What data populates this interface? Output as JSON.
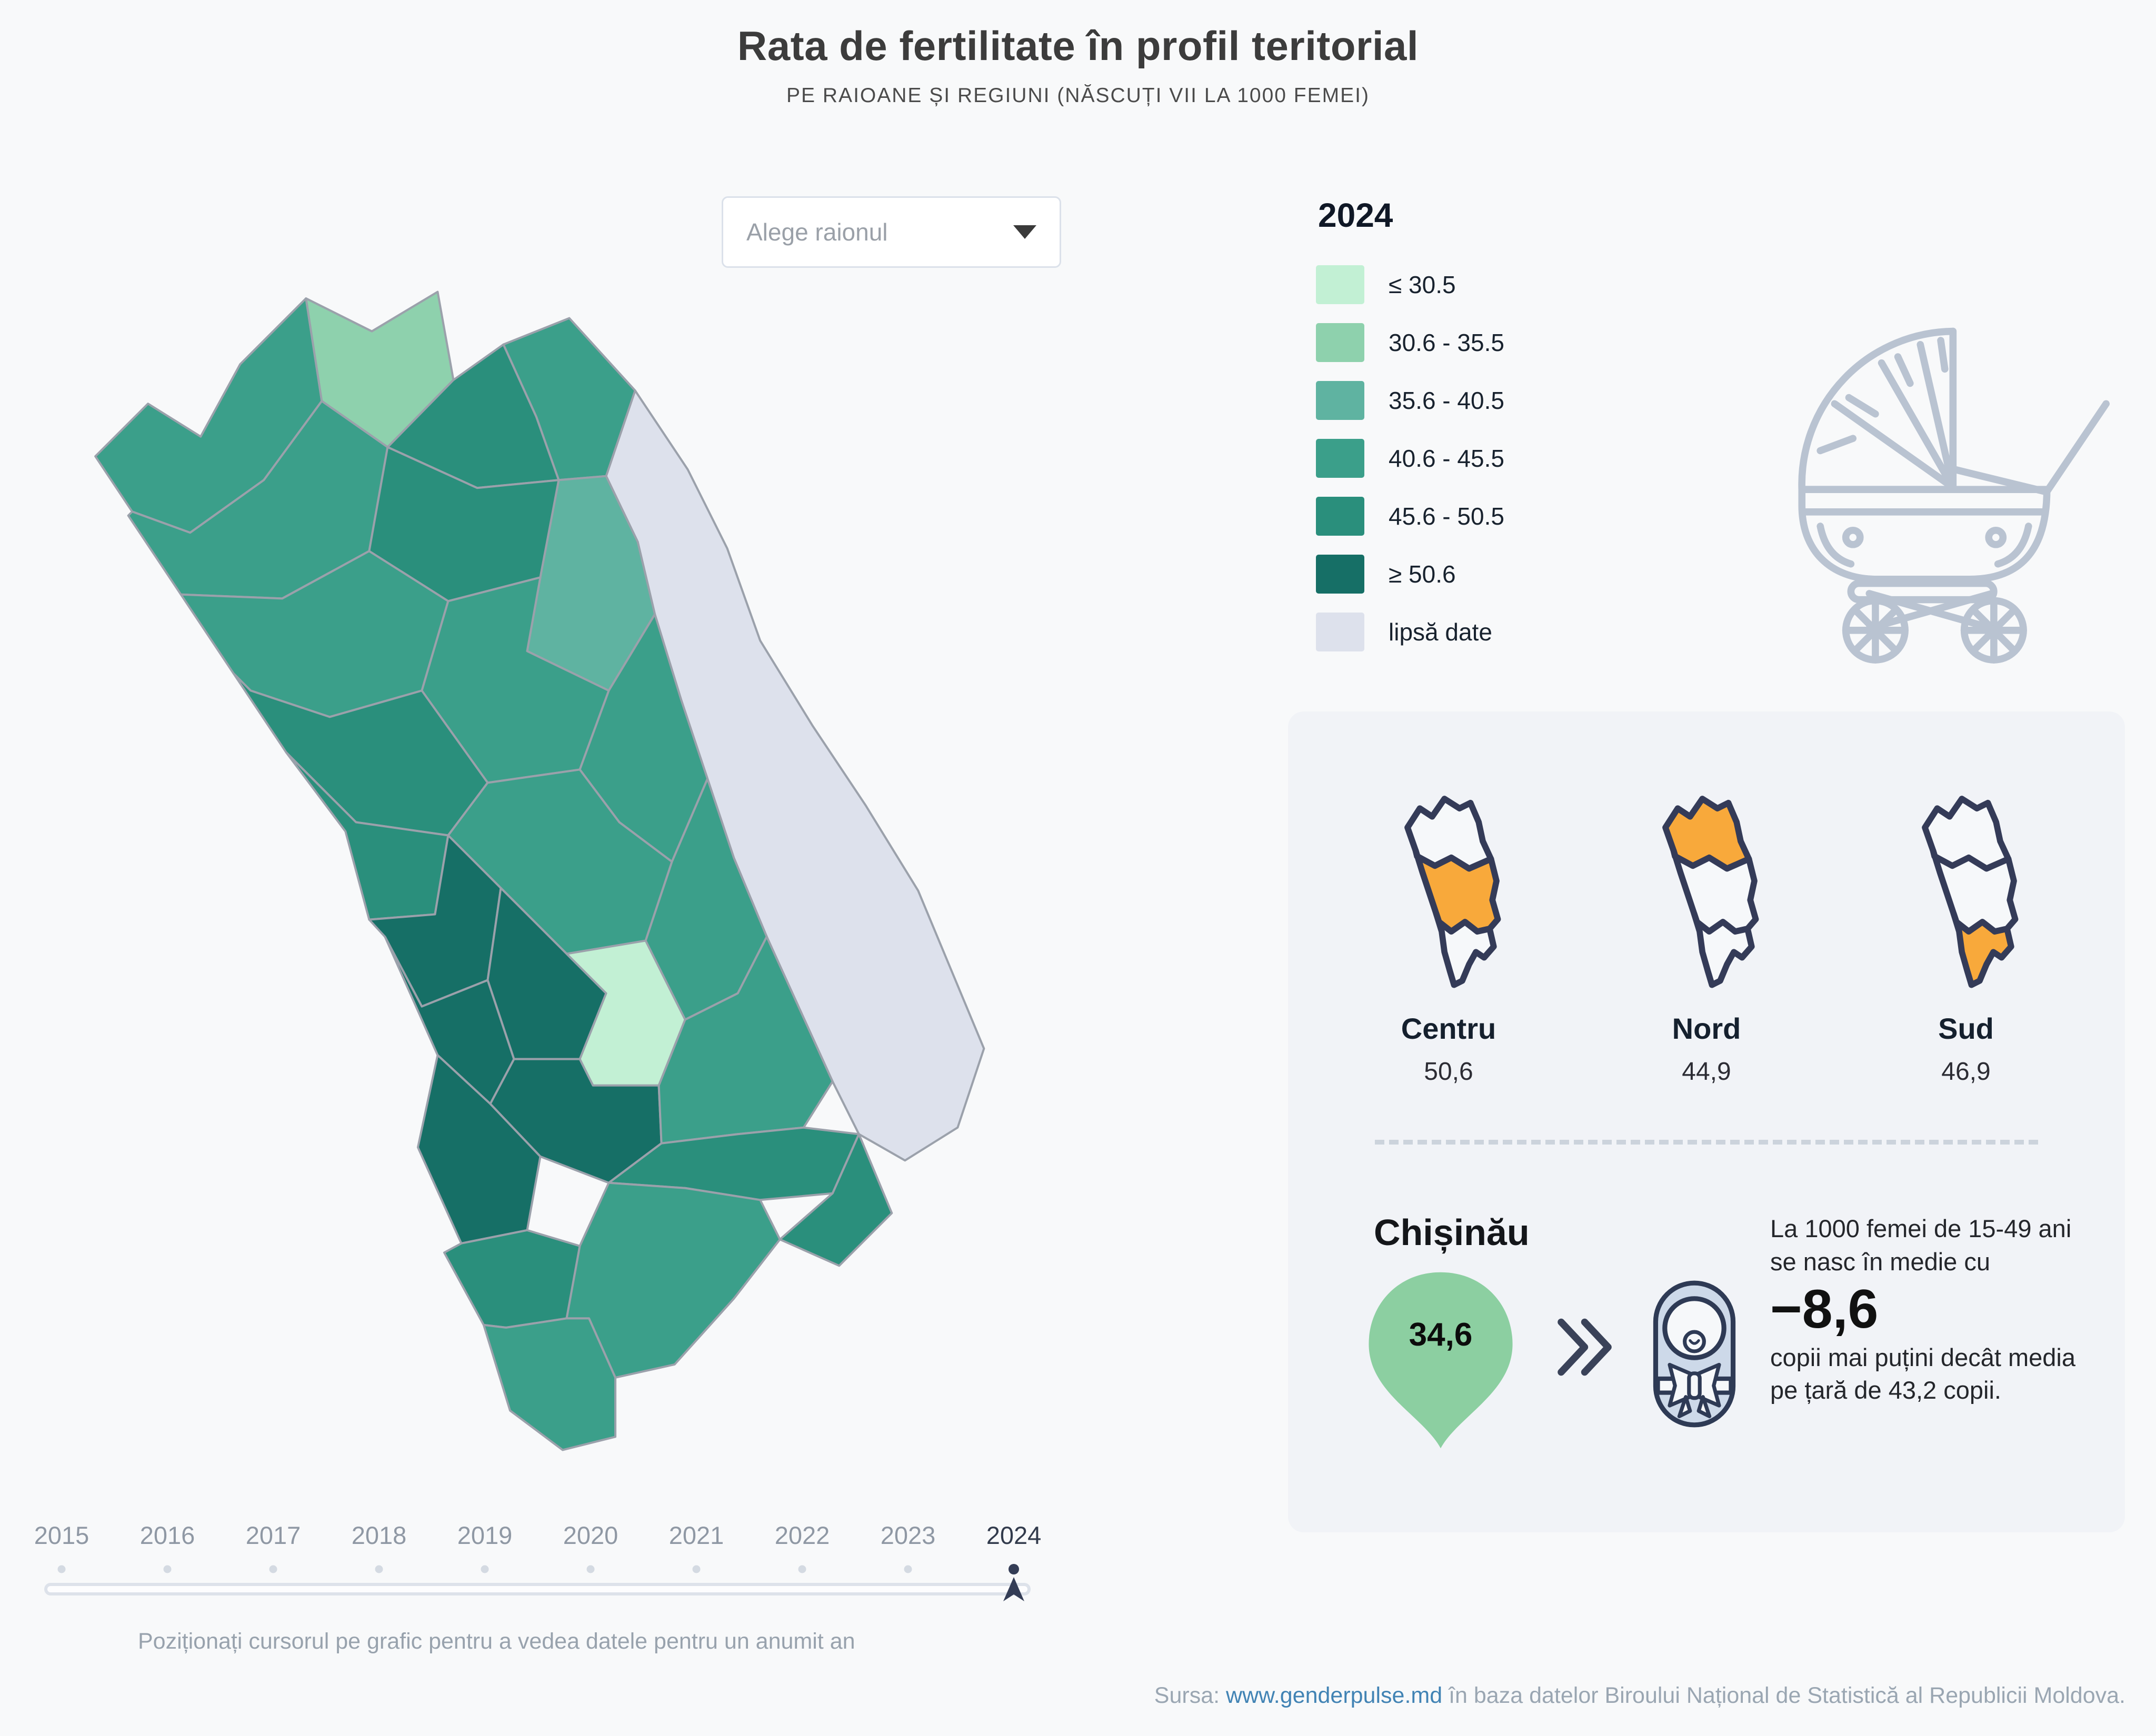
{
  "page": {
    "title": "Rata de fertilitate în profil teritorial",
    "subtitle": "PE RAIOANE ȘI REGIUNI (NĂSCUȚI VII LA 1000 FEMEI)"
  },
  "controls": {
    "district_select_placeholder": "Alege raionul"
  },
  "legend": {
    "year": "2024",
    "classes": [
      {
        "label": "≤ 30.5",
        "color": "#c2f0d4"
      },
      {
        "label": "30.6 - 35.5",
        "color": "#8ed1ad"
      },
      {
        "label": "35.6 - 40.5",
        "color": "#5fb3a1"
      },
      {
        "label": "40.6 - 45.5",
        "color": "#3b9f8a"
      },
      {
        "label": "45.6 - 50.5",
        "color": "#2a8f7c"
      },
      {
        "label": "≥ 50.6",
        "color": "#166f66"
      },
      {
        "label": "lipsă date",
        "color": "#dde1ec"
      }
    ]
  },
  "regions": [
    {
      "name": "Centru",
      "value": "50,6",
      "zone": "centru"
    },
    {
      "name": "Nord",
      "value": "44,9",
      "zone": "nord"
    },
    {
      "name": "Sud",
      "value": "46,9",
      "zone": "sud"
    }
  ],
  "chisinau": {
    "name": "Chișinău",
    "value": "34,6",
    "text_before": "La 1000 femei de 15-49 ani se nasc în medie cu",
    "big_value": "−8,6",
    "text_after": "copii mai puțini decât media pe țară de 43,2 copii."
  },
  "timeline": {
    "years": [
      "2015",
      "2016",
      "2017",
      "2018",
      "2019",
      "2020",
      "2021",
      "2022",
      "2023",
      "2024"
    ],
    "selected": "2024",
    "hint": "Poziționați cursorul pe grafic pentru a vedea datele pentru un anumit an"
  },
  "source": {
    "prefix": "Sursa: ",
    "link": "www.genderpulse.md",
    "rest": " în baza datelor Biroului Național de Statistică al Republicii Moldova."
  },
  "colors": {
    "page": "#f8f9fa",
    "panel": "#f1f3f7",
    "c1": "#c2f0d4",
    "c2": "#8ed1ad",
    "c3": "#5fb3a1",
    "c4": "#3b9f8a",
    "c5": "#2a8f7c",
    "c6": "#166f66",
    "nodata": "#dde1ec",
    "orange": "#f8a93b",
    "navy": "#343d56",
    "icongray": "#b9c3d1",
    "pin": "#8ccfa1",
    "link": "#4183b4",
    "track": "#dde2ea",
    "dot": "#d4dae2"
  },
  "chart_data": {
    "type": "heatmap",
    "subtype": "choropleth-map",
    "title": "Rata de fertilitate în profil teritorial",
    "subtitle": "PE RAIOANE ȘI REGIUNI (NĂSCUȚI VII LA 1000 FEMEI)",
    "year": "2024",
    "unit": "născuți vii la 1000 femei (15-49 ani)",
    "legend_bins": [
      {
        "label": "≤ 30.5",
        "color": "#c2f0d4"
      },
      {
        "label": "30.6 - 35.5",
        "color": "#8ed1ad"
      },
      {
        "label": "35.6 - 40.5",
        "color": "#5fb3a1"
      },
      {
        "label": "40.6 - 45.5",
        "color": "#3b9f8a"
      },
      {
        "label": "45.6 - 50.5",
        "color": "#2a8f7c"
      },
      {
        "label": "≥ 50.6",
        "color": "#166f66"
      },
      {
        "label": "lipsă date",
        "color": "#dde1ec"
      }
    ],
    "regions": [
      {
        "name": "Centru",
        "value": 50.6
      },
      {
        "name": "Nord",
        "value": 44.9
      },
      {
        "name": "Sud",
        "value": 46.9
      },
      {
        "name": "Chișinău",
        "value": 34.6
      }
    ],
    "national_average": 43.2,
    "chisinau_difference_vs_average": -8.6,
    "timeline_years": [
      2015,
      2016,
      2017,
      2018,
      2019,
      2020,
      2021,
      2022,
      2023,
      2024
    ],
    "selected_year": 2024,
    "legend_position": "right"
  }
}
